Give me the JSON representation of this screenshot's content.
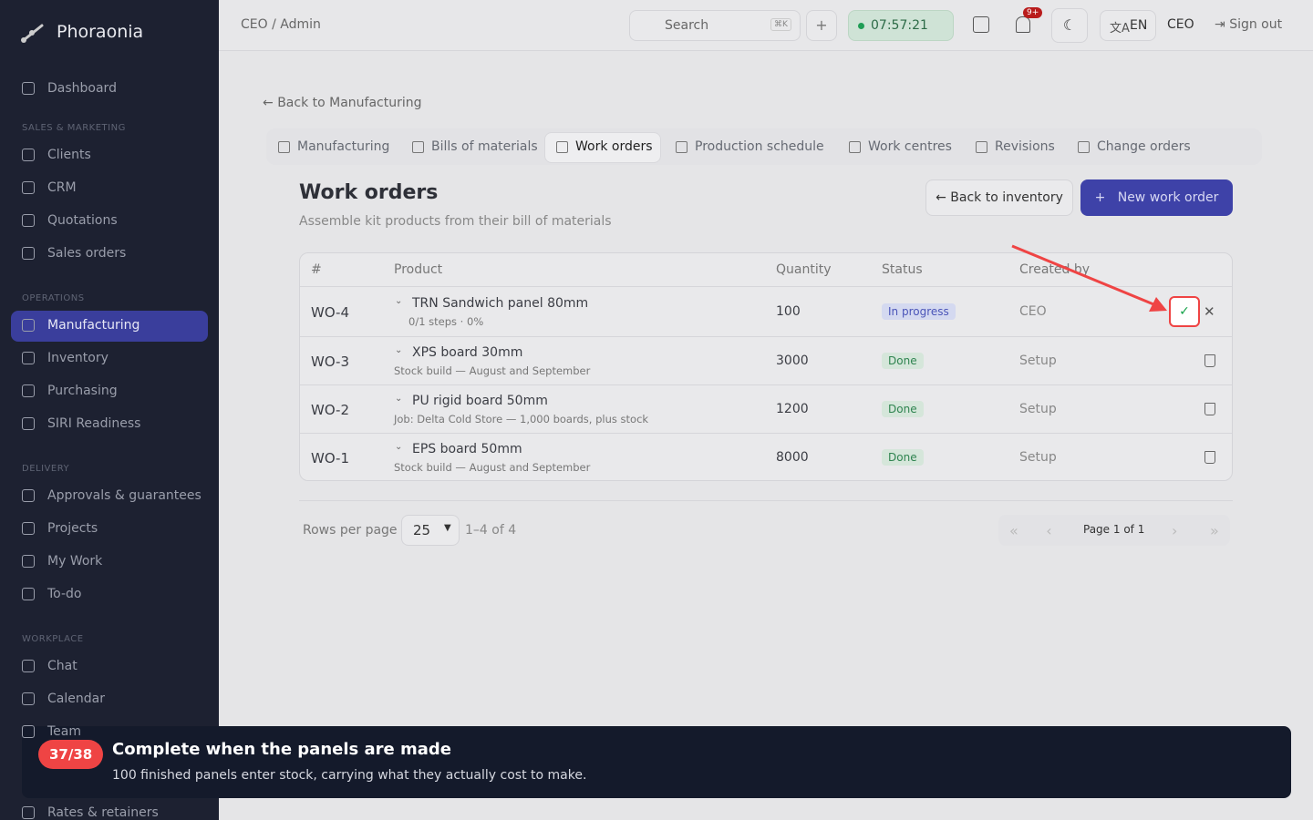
{
  "sidebar": {
    "brand": "Phoraonia",
    "dashboard": "Dashboard",
    "sections": [
      {
        "label": "SALES & MARKETING",
        "items": [
          "Clients",
          "CRM",
          "Quotations",
          "Sales orders"
        ]
      },
      {
        "label": "OPERATIONS",
        "items": [
          "Manufacturing",
          "Inventory",
          "Purchasing",
          "SIRI Readiness"
        ]
      },
      {
        "label": "DELIVERY",
        "items": [
          "Approvals & guarantees",
          "Projects",
          "My Work",
          "To-do"
        ]
      },
      {
        "label": "WORKPLACE",
        "items": [
          "Chat",
          "Calendar",
          "Team"
        ]
      }
    ],
    "active": "Manufacturing",
    "footer": "Rates & retainers"
  },
  "topbar": {
    "breadcrumb": "CEO / Admin",
    "search": "Search",
    "shortcut": "⌘K",
    "timer": "07:57:21",
    "notifications": "9+",
    "language": "EN",
    "user": "CEO",
    "sign_out": "Sign out"
  },
  "page": {
    "back_link": "Back to Manufacturing",
    "tabs": [
      "Manufacturing",
      "Bills of materials",
      "Work orders",
      "Production schedule",
      "Work centres",
      "Revisions",
      "Change orders"
    ],
    "active_tab": "Work orders",
    "title": "Work orders",
    "subtitle": "Assemble kit products from their bill of materials",
    "back_button": "Back to inventory",
    "new_button": "New work order"
  },
  "table": {
    "columns": [
      "#",
      "Product",
      "Quantity",
      "Status",
      "Created by"
    ],
    "rows": [
      {
        "id": "WO-4",
        "product": "TRN Sandwich panel 80mm",
        "detail": "0/1 steps · 0%",
        "quantity": 100,
        "status": "In progress",
        "created_by": "CEO"
      },
      {
        "id": "WO-3",
        "product": "XPS board 30mm",
        "detail": "Stock build — August and September",
        "quantity": 3000,
        "status": "Done",
        "created_by": "Setup"
      },
      {
        "id": "WO-2",
        "product": "PU rigid board 50mm",
        "detail": "Job: Delta Cold Store — 1,000 boards, plus stock",
        "quantity": 1200,
        "status": "Done",
        "created_by": "Setup"
      },
      {
        "id": "WO-1",
        "product": "EPS board 50mm",
        "detail": "Stock build — August and September",
        "quantity": 8000,
        "status": "Done",
        "created_by": "Setup"
      }
    ]
  },
  "pagination": {
    "rows_label": "Rows per page",
    "rows_per_page": "25",
    "range": "1–4 of 4",
    "page": "Page 1 of 1"
  },
  "tour": {
    "step": "37/38",
    "title": "Complete when the panels are made",
    "body": "100 finished panels enter stock, carrying what they actually cost to make."
  }
}
